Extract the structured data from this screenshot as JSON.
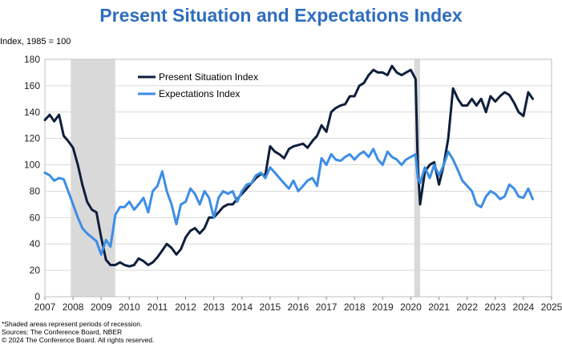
{
  "chart_data": {
    "type": "line",
    "title": "Present Situation and Expectations Index",
    "ylabel": "Index, 1985 = 100",
    "xlabel": "",
    "xlim": [
      2007,
      2025
    ],
    "ylim": [
      0,
      180
    ],
    "x_ticks": [
      "2007",
      "2008",
      "2009",
      "2010",
      "2011",
      "2012",
      "2013",
      "2014",
      "2015",
      "2016",
      "2017",
      "2018",
      "2019",
      "2020",
      "2021",
      "2022",
      "2023",
      "2024",
      "2025"
    ],
    "y_ticks": [
      "0",
      "20",
      "40",
      "60",
      "80",
      "100",
      "120",
      "140",
      "160",
      "180"
    ],
    "grid": "horizontal",
    "legend_position": "top-left",
    "recessions": [
      [
        2007.92,
        2009.5
      ],
      [
        2020.12,
        2020.33
      ]
    ],
    "series": [
      {
        "name": "Present Situation Index",
        "color": "#0d1f3c",
        "points": [
          [
            2007.0,
            134
          ],
          [
            2007.17,
            138
          ],
          [
            2007.33,
            133
          ],
          [
            2007.5,
            138
          ],
          [
            2007.67,
            122
          ],
          [
            2007.83,
            118
          ],
          [
            2008.0,
            113
          ],
          [
            2008.17,
            100
          ],
          [
            2008.33,
            85
          ],
          [
            2008.5,
            72
          ],
          [
            2008.67,
            66
          ],
          [
            2008.83,
            64
          ],
          [
            2009.0,
            45
          ],
          [
            2009.17,
            28
          ],
          [
            2009.33,
            24
          ],
          [
            2009.5,
            24
          ],
          [
            2009.67,
            26
          ],
          [
            2009.83,
            24
          ],
          [
            2010.0,
            23
          ],
          [
            2010.17,
            24
          ],
          [
            2010.33,
            29
          ],
          [
            2010.5,
            27
          ],
          [
            2010.67,
            24
          ],
          [
            2010.83,
            26
          ],
          [
            2011.0,
            30
          ],
          [
            2011.17,
            35
          ],
          [
            2011.33,
            40
          ],
          [
            2011.5,
            37
          ],
          [
            2011.67,
            32
          ],
          [
            2011.83,
            36
          ],
          [
            2012.0,
            45
          ],
          [
            2012.17,
            50
          ],
          [
            2012.33,
            52
          ],
          [
            2012.5,
            48
          ],
          [
            2012.67,
            52
          ],
          [
            2012.83,
            60
          ],
          [
            2013.0,
            60
          ],
          [
            2013.17,
            64
          ],
          [
            2013.33,
            68
          ],
          [
            2013.5,
            70
          ],
          [
            2013.67,
            70
          ],
          [
            2013.83,
            74
          ],
          [
            2014.0,
            78
          ],
          [
            2014.17,
            82
          ],
          [
            2014.33,
            86
          ],
          [
            2014.5,
            90
          ],
          [
            2014.67,
            93
          ],
          [
            2014.83,
            92
          ],
          [
            2015.0,
            114
          ],
          [
            2015.17,
            110
          ],
          [
            2015.33,
            108
          ],
          [
            2015.5,
            105
          ],
          [
            2015.67,
            112
          ],
          [
            2015.83,
            114
          ],
          [
            2016.0,
            115
          ],
          [
            2016.17,
            116
          ],
          [
            2016.33,
            113
          ],
          [
            2016.5,
            118
          ],
          [
            2016.67,
            122
          ],
          [
            2016.83,
            130
          ],
          [
            2017.0,
            125
          ],
          [
            2017.17,
            140
          ],
          [
            2017.33,
            143
          ],
          [
            2017.5,
            145
          ],
          [
            2017.67,
            146
          ],
          [
            2017.83,
            152
          ],
          [
            2018.0,
            152
          ],
          [
            2018.17,
            160
          ],
          [
            2018.33,
            162
          ],
          [
            2018.5,
            168
          ],
          [
            2018.67,
            172
          ],
          [
            2018.83,
            170
          ],
          [
            2019.0,
            170
          ],
          [
            2019.17,
            168
          ],
          [
            2019.33,
            175
          ],
          [
            2019.5,
            170
          ],
          [
            2019.67,
            168
          ],
          [
            2019.83,
            170
          ],
          [
            2020.0,
            172
          ],
          [
            2020.17,
            165
          ],
          [
            2020.25,
            98
          ],
          [
            2020.33,
            70
          ],
          [
            2020.5,
            95
          ],
          [
            2020.67,
            100
          ],
          [
            2020.83,
            102
          ],
          [
            2021.0,
            85
          ],
          [
            2021.17,
            100
          ],
          [
            2021.33,
            120
          ],
          [
            2021.5,
            158
          ],
          [
            2021.67,
            150
          ],
          [
            2021.83,
            145
          ],
          [
            2022.0,
            145
          ],
          [
            2022.17,
            150
          ],
          [
            2022.33,
            145
          ],
          [
            2022.5,
            150
          ],
          [
            2022.67,
            140
          ],
          [
            2022.83,
            152
          ],
          [
            2023.0,
            148
          ],
          [
            2023.17,
            152
          ],
          [
            2023.33,
            155
          ],
          [
            2023.5,
            153
          ],
          [
            2023.67,
            147
          ],
          [
            2023.83,
            140
          ],
          [
            2024.0,
            137
          ],
          [
            2024.17,
            155
          ],
          [
            2024.33,
            150
          ]
        ]
      },
      {
        "name": "Expectations Index",
        "color": "#3c8de6",
        "points": [
          [
            2007.0,
            94
          ],
          [
            2007.17,
            92
          ],
          [
            2007.33,
            88
          ],
          [
            2007.5,
            90
          ],
          [
            2007.67,
            89
          ],
          [
            2007.83,
            80
          ],
          [
            2008.0,
            70
          ],
          [
            2008.17,
            60
          ],
          [
            2008.33,
            52
          ],
          [
            2008.5,
            48
          ],
          [
            2008.67,
            45
          ],
          [
            2008.83,
            42
          ],
          [
            2009.0,
            32
          ],
          [
            2009.17,
            43
          ],
          [
            2009.33,
            38
          ],
          [
            2009.5,
            62
          ],
          [
            2009.67,
            68
          ],
          [
            2009.83,
            68
          ],
          [
            2010.0,
            72
          ],
          [
            2010.17,
            66
          ],
          [
            2010.33,
            70
          ],
          [
            2010.5,
            75
          ],
          [
            2010.67,
            64
          ],
          [
            2010.83,
            80
          ],
          [
            2011.0,
            84
          ],
          [
            2011.17,
            95
          ],
          [
            2011.33,
            80
          ],
          [
            2011.5,
            70
          ],
          [
            2011.67,
            55
          ],
          [
            2011.83,
            70
          ],
          [
            2012.0,
            72
          ],
          [
            2012.17,
            82
          ],
          [
            2012.33,
            78
          ],
          [
            2012.5,
            70
          ],
          [
            2012.67,
            80
          ],
          [
            2012.83,
            75
          ],
          [
            2013.0,
            60
          ],
          [
            2013.17,
            75
          ],
          [
            2013.33,
            80
          ],
          [
            2013.5,
            78
          ],
          [
            2013.67,
            80
          ],
          [
            2013.83,
            72
          ],
          [
            2014.0,
            80
          ],
          [
            2014.17,
            85
          ],
          [
            2014.33,
            86
          ],
          [
            2014.5,
            92
          ],
          [
            2014.67,
            94
          ],
          [
            2014.83,
            90
          ],
          [
            2015.0,
            98
          ],
          [
            2015.17,
            94
          ],
          [
            2015.33,
            90
          ],
          [
            2015.5,
            86
          ],
          [
            2015.67,
            82
          ],
          [
            2015.83,
            88
          ],
          [
            2016.0,
            80
          ],
          [
            2016.17,
            84
          ],
          [
            2016.33,
            88
          ],
          [
            2016.5,
            90
          ],
          [
            2016.67,
            84
          ],
          [
            2016.83,
            105
          ],
          [
            2017.0,
            100
          ],
          [
            2017.17,
            108
          ],
          [
            2017.33,
            104
          ],
          [
            2017.5,
            103
          ],
          [
            2017.67,
            106
          ],
          [
            2017.83,
            108
          ],
          [
            2018.0,
            104
          ],
          [
            2018.17,
            108
          ],
          [
            2018.33,
            110
          ],
          [
            2018.5,
            106
          ],
          [
            2018.67,
            112
          ],
          [
            2018.83,
            104
          ],
          [
            2019.0,
            100
          ],
          [
            2019.17,
            110
          ],
          [
            2019.33,
            106
          ],
          [
            2019.5,
            104
          ],
          [
            2019.67,
            100
          ],
          [
            2019.83,
            104
          ],
          [
            2020.0,
            106
          ],
          [
            2020.17,
            108
          ],
          [
            2020.25,
            90
          ],
          [
            2020.33,
            86
          ],
          [
            2020.5,
            98
          ],
          [
            2020.67,
            90
          ],
          [
            2020.83,
            100
          ],
          [
            2021.0,
            92
          ],
          [
            2021.17,
            100
          ],
          [
            2021.33,
            110
          ],
          [
            2021.5,
            104
          ],
          [
            2021.67,
            96
          ],
          [
            2021.83,
            88
          ],
          [
            2022.0,
            84
          ],
          [
            2022.17,
            80
          ],
          [
            2022.33,
            70
          ],
          [
            2022.5,
            68
          ],
          [
            2022.67,
            76
          ],
          [
            2022.83,
            80
          ],
          [
            2023.0,
            78
          ],
          [
            2023.17,
            74
          ],
          [
            2023.33,
            76
          ],
          [
            2023.5,
            85
          ],
          [
            2023.67,
            82
          ],
          [
            2023.83,
            76
          ],
          [
            2024.0,
            75
          ],
          [
            2024.17,
            82
          ],
          [
            2024.33,
            74
          ]
        ]
      }
    ]
  },
  "footnotes": {
    "line1": "*Shaded areas represent periods of recession.",
    "line2": "Sources: The Conference Board, NBER",
    "line3": "© 2024 The Conference Board. All rights reserved."
  }
}
